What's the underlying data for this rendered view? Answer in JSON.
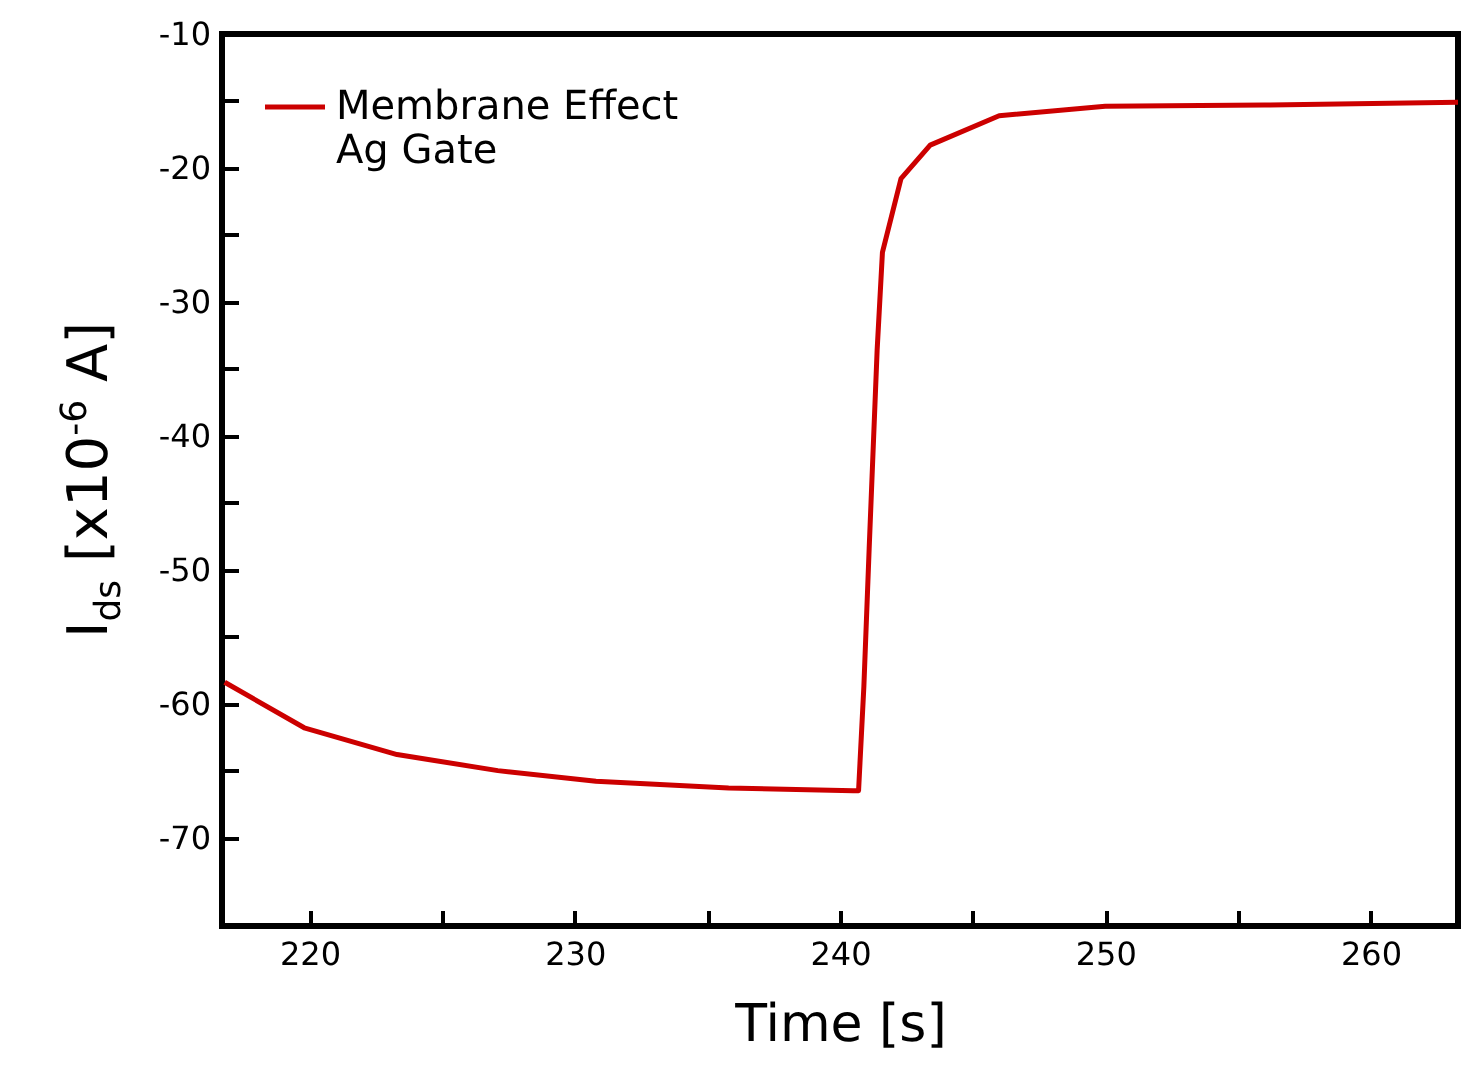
{
  "chart_data": {
    "type": "line",
    "xlabel": "Time [s]",
    "ylabel": "I$_{ds}$ [x10$^{-6}$ A]",
    "x": [
      216.8,
      219.8,
      223.3,
      227.1,
      230.8,
      235.8,
      240.5,
      240.7,
      240.9,
      241.1,
      241.4,
      241.6,
      242.3,
      243.4,
      246.0,
      250.0,
      256.0,
      263.3
    ],
    "series": [
      {
        "name": "Membrane Effect\nAg Gate",
        "color": "#cc0000",
        "values": [
          -58.4,
          -61.8,
          -63.8,
          -65.0,
          -65.8,
          -66.3,
          -66.5,
          -66.5,
          -58.7,
          -48.4,
          -33.6,
          -26.3,
          -20.8,
          -18.3,
          -16.1,
          -15.4,
          -15.3,
          -15.1
        ]
      }
    ],
    "xlim": [
      216.7,
      263.3
    ],
    "ylim": [
      -76.6,
      -10
    ],
    "xticks": [
      220,
      {
        "value": 225,
        "label": null
      },
      230,
      {
        "value": 235,
        "label": null
      },
      240,
      {
        "value": 245,
        "label": null
      },
      250,
      {
        "value": 255,
        "label": null
      },
      260
    ],
    "yticks": [
      -70,
      {
        "value": -65,
        "label": null
      },
      -60,
      {
        "value": -55,
        "label": null
      },
      -50,
      {
        "value": -45,
        "label": null
      },
      -40,
      {
        "value": -35,
        "label": null
      },
      -30,
      {
        "value": -25,
        "label": null
      },
      -20,
      {
        "value": -15,
        "label": null
      },
      -10
    ],
    "legend": "top left",
    "grid": false,
    "line_style": "solid",
    "marker": "none"
  }
}
